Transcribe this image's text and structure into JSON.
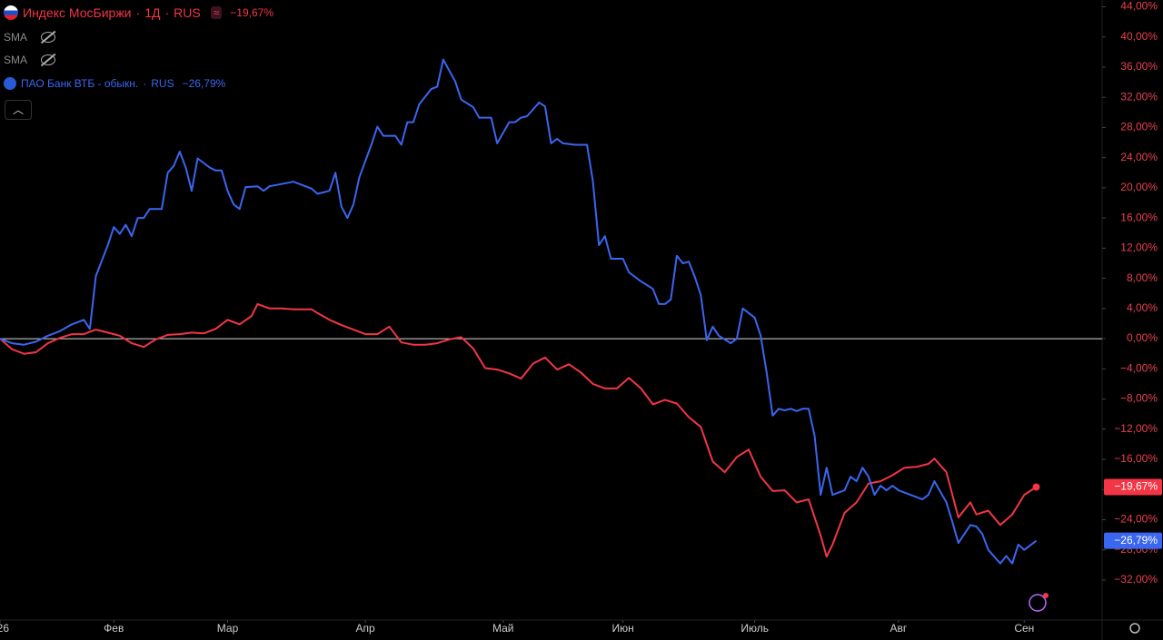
{
  "chart_data": {
    "type": "line",
    "series": [
      {
        "name": "Индекс МосБиржи",
        "interval": "1Д",
        "exchange": "RUS",
        "change_label": "−19,67%",
        "color": "#f23645",
        "x": [
          0,
          2,
          4,
          6,
          8,
          10,
          12,
          14,
          16,
          18,
          20,
          22,
          24,
          26,
          28,
          30,
          32,
          34,
          36,
          38,
          40,
          42,
          43,
          45,
          47,
          49,
          52,
          53,
          55,
          57,
          59,
          61,
          63,
          65,
          67,
          69,
          71,
          73,
          75,
          77,
          79,
          81,
          83,
          85,
          87,
          89,
          91,
          93,
          95,
          97,
          99,
          101,
          103,
          105,
          107,
          109,
          111,
          113,
          115,
          117,
          119,
          121,
          123,
          125,
          127,
          129,
          131,
          133,
          135,
          137,
          138,
          139,
          141,
          143,
          145,
          147,
          149,
          151,
          153,
          155,
          156,
          158,
          160,
          162,
          163,
          165,
          167,
          169,
          171,
          173
        ],
        "values": [
          0,
          -1.4,
          -2.0,
          -1.8,
          -0.6,
          0.1,
          0.6,
          0.6,
          1.2,
          0.8,
          0.4,
          -0.6,
          -1.1,
          -0.1,
          0.5,
          0.6,
          0.8,
          0.7,
          1.3,
          2.5,
          1.9,
          3.0,
          4.6,
          4.0,
          4.0,
          3.9,
          3.9,
          3.4,
          2.5,
          1.8,
          1.2,
          0.6,
          0.6,
          1.6,
          -0.5,
          -0.8,
          -0.8,
          -0.6,
          -0.1,
          0.2,
          -1.3,
          -3.9,
          -4.1,
          -4.6,
          -5.3,
          -3.3,
          -2.5,
          -4.1,
          -3.4,
          -4.5,
          -6.0,
          -6.6,
          -6.6,
          -5.2,
          -6.6,
          -8.7,
          -8.1,
          -8.6,
          -10.4,
          -11.7,
          -16.3,
          -17.7,
          -15.7,
          -14.7,
          -18.3,
          -20.2,
          -20.1,
          -21.7,
          -21.3,
          -26.1,
          -28.9,
          -27.3,
          -23.1,
          -21.7,
          -19.2,
          -18.9,
          -18.1,
          -17.1,
          -17.0,
          -16.6,
          -15.9,
          -17.7,
          -23.7,
          -21.7,
          -23.3,
          -22.8,
          -24.7,
          -23.3,
          -20.7,
          -19.67
        ]
      },
      {
        "name": "ПАО Банк ВТБ - обыкн.",
        "exchange": "RUS",
        "change_label": "−26,79%",
        "color": "#3a66f0",
        "x": [
          0,
          2,
          4,
          6,
          8,
          10,
          12,
          14,
          15,
          16,
          18,
          19,
          20,
          21,
          22,
          23,
          24,
          25,
          27,
          28,
          29,
          30,
          31,
          32,
          33,
          34,
          35,
          36,
          37,
          38,
          39,
          40,
          41,
          43,
          44,
          45,
          47,
          49,
          52,
          53,
          55,
          56,
          57,
          58,
          59,
          60,
          62,
          63,
          64,
          66,
          67,
          68,
          69,
          70,
          72,
          73,
          74,
          76,
          77,
          79,
          80,
          82,
          83,
          85,
          86,
          87,
          88,
          90,
          91,
          92,
          93,
          94,
          96,
          98,
          99,
          100,
          101,
          102,
          104,
          105,
          107,
          109,
          110,
          111,
          112,
          113,
          114,
          115,
          116,
          117,
          118,
          119,
          120,
          122,
          123,
          124,
          126,
          127,
          128,
          129,
          130,
          131,
          132,
          133,
          134,
          135,
          136,
          137,
          138,
          139,
          141,
          142,
          143,
          144,
          145,
          146,
          147,
          148,
          149,
          150,
          152,
          154,
          155,
          156,
          158,
          159,
          160,
          162,
          163,
          164,
          165,
          167,
          168,
          169,
          170,
          171,
          173
        ],
        "values": [
          0,
          -0.6,
          -0.8,
          -0.4,
          0.4,
          1.0,
          1.9,
          2.5,
          1.3,
          8.3,
          12.4,
          14.8,
          13.9,
          15.1,
          13.6,
          16.0,
          16.0,
          17.2,
          17.2,
          22.0,
          22.9,
          24.8,
          22.7,
          19.6,
          23.9,
          23.3,
          22.7,
          22.3,
          22.3,
          19.6,
          17.8,
          17.2,
          20.1,
          20.2,
          19.6,
          20.2,
          20.5,
          20.8,
          19.9,
          19.2,
          19.6,
          22.0,
          17.5,
          16.0,
          17.8,
          21.4,
          25.7,
          28.1,
          26.9,
          26.9,
          25.7,
          28.7,
          28.7,
          31.1,
          33.1,
          33.4,
          37.0,
          34.1,
          31.7,
          30.7,
          29.3,
          29.3,
          25.9,
          28.7,
          28.7,
          29.3,
          29.5,
          31.3,
          30.8,
          25.9,
          26.5,
          25.9,
          25.7,
          25.7,
          20.8,
          12.4,
          13.6,
          10.6,
          10.6,
          8.8,
          7.6,
          6.6,
          4.6,
          4.6,
          5.2,
          11.0,
          10.0,
          10.2,
          8.2,
          5.8,
          -0.2,
          1.6,
          0.4,
          -0.6,
          0,
          4.0,
          2.8,
          0.4,
          -4.5,
          -10.2,
          -9.3,
          -9.5,
          -9.3,
          -9.6,
          -9.3,
          -9.3,
          -12.9,
          -20.7,
          -17.1,
          -20.7,
          -20.1,
          -18.3,
          -18.9,
          -17.1,
          -18.3,
          -20.7,
          -19.5,
          -20.1,
          -19.5,
          -20.1,
          -20.7,
          -21.3,
          -20.7,
          -18.9,
          -21.7,
          -24.3,
          -27.1,
          -24.7,
          -24.9,
          -25.9,
          -28.0,
          -29.8,
          -28.8,
          -29.8,
          -27.3,
          -28.0,
          -26.79
        ]
      }
    ],
    "indicators": [
      "SMA",
      "SMA"
    ],
    "zero_line": 0,
    "xlim": [
      0,
      184
    ],
    "xticks": [
      {
        "value": 0,
        "label": "26"
      },
      {
        "value": 19,
        "label": "Фев"
      },
      {
        "value": 38,
        "label": "Мар"
      },
      {
        "value": 61,
        "label": "Апр"
      },
      {
        "value": 84,
        "label": "Май"
      },
      {
        "value": 104,
        "label": "Июн"
      },
      {
        "value": 126,
        "label": "Июль"
      },
      {
        "value": 150,
        "label": "Авг"
      },
      {
        "value": 171,
        "label": "Сен"
      }
    ],
    "ylim": [
      -37.3,
      44.9
    ],
    "yticks": [
      {
        "value": 44,
        "label": "44,00%"
      },
      {
        "value": 40,
        "label": "40,00%"
      },
      {
        "value": 36,
        "label": "36,00%"
      },
      {
        "value": 32,
        "label": "32,00%"
      },
      {
        "value": 28,
        "label": "28,00%"
      },
      {
        "value": 24,
        "label": "24,00%"
      },
      {
        "value": 20,
        "label": "20,00%"
      },
      {
        "value": 16,
        "label": "16,00%"
      },
      {
        "value": 12,
        "label": "12,00%"
      },
      {
        "value": 8,
        "label": "8,00%"
      },
      {
        "value": 4,
        "label": "4,00%"
      },
      {
        "value": 0,
        "label": "0,00%"
      },
      {
        "value": -4,
        "label": "−4,00%"
      },
      {
        "value": -8,
        "label": "−8,00%"
      },
      {
        "value": -12,
        "label": "−12,00%"
      },
      {
        "value": -16,
        "label": "−16,00%"
      },
      {
        "value": -20,
        "label": "−20,00%"
      },
      {
        "value": -24,
        "label": "−24,00%"
      },
      {
        "value": -28,
        "label": "−28,00%"
      },
      {
        "value": -32,
        "label": "−32,00%"
      }
    ],
    "grid": false
  }
}
